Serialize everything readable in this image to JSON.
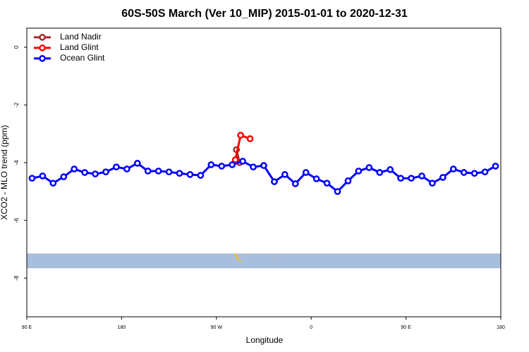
{
  "chart_data": {
    "type": "line",
    "title": "60S-50S March (Ver 10_MIP)   2015-01-01 to 2020-12-31",
    "x_label": "Longitude",
    "y_label": "XCO2 - MLO trend (ppm)",
    "xlim": [
      90,
      540
    ],
    "ylim": [
      -9.34,
      0.66
    ],
    "xticks": [
      {
        "value": 90,
        "label": "90 E"
      },
      180,
      {
        "value": 270,
        "label": "90 W"
      },
      {
        "value": 360,
        "label": "0"
      },
      {
        "value": 450,
        "label": "90 E"
      },
      {
        "value": 540,
        "label": "180"
      }
    ],
    "yticks": [
      0,
      -2,
      -4,
      -6,
      -8
    ],
    "grid": false,
    "legend": "top-left",
    "series": [
      {
        "name": "Land Nadir",
        "color": "#a52a2a",
        "x": [
          289,
          292
        ],
        "values": [
          -3.55,
          -4.0
        ]
      },
      {
        "name": "Land Glint",
        "color": "#ff0000",
        "x": [
          288,
          293,
          302
        ],
        "values": [
          -3.9,
          -3.05,
          -3.17
        ]
      },
      {
        "name": "Ocean Glint",
        "color": "#0000ff",
        "x": [
          95,
          105,
          115,
          125,
          135,
          145,
          155,
          165,
          175,
          185,
          195,
          205,
          215,
          225,
          235,
          245,
          255,
          265,
          275,
          285,
          295,
          305,
          315,
          325,
          335,
          345,
          355,
          365,
          375,
          385,
          395,
          405,
          415,
          425,
          435,
          445,
          455,
          465,
          475,
          485,
          495,
          505,
          515,
          525,
          535
        ],
        "values": [
          -4.54,
          -4.46,
          -4.71,
          -4.49,
          -4.22,
          -4.34,
          -4.39,
          -4.32,
          -4.15,
          -4.22,
          -4.02,
          -4.29,
          -4.29,
          -4.32,
          -4.37,
          -4.41,
          -4.44,
          -4.07,
          -4.12,
          -4.07,
          -3.95,
          -4.15,
          -4.1,
          -4.66,
          -4.41,
          -4.73,
          -4.34,
          -4.56,
          -4.71,
          -5.0,
          -4.63,
          -4.29,
          -4.17,
          -4.34,
          -4.24,
          -4.54,
          -4.54,
          -4.46,
          -4.71,
          -4.51,
          -4.22,
          -4.34,
          -4.37,
          -4.32,
          -4.12
        ]
      }
    ]
  }
}
